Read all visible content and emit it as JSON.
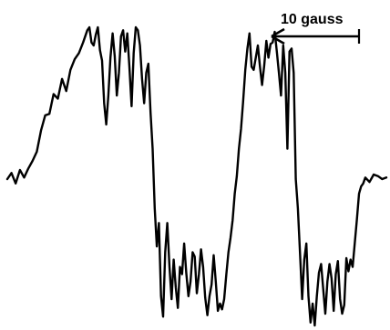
{
  "chart_data": {
    "type": "line",
    "title": "",
    "xlabel": "",
    "ylabel": "",
    "grid": false,
    "legend": "none",
    "line_color": "#000000",
    "scale_bar": {
      "label": "10 gauss",
      "direction": "left-arrow"
    },
    "series": [
      {
        "points": [
          [
            0,
            0
          ],
          [
            2,
            0.4
          ],
          [
            4,
            -0.3
          ],
          [
            6,
            0.6
          ],
          [
            8,
            0.1
          ],
          [
            10,
            0.7
          ],
          [
            12,
            1.2
          ],
          [
            14,
            1.8
          ],
          [
            16,
            3.2
          ],
          [
            18,
            4.2
          ],
          [
            20,
            4.3
          ],
          [
            22,
            5.6
          ],
          [
            24,
            5.3
          ],
          [
            26,
            6.6
          ],
          [
            28,
            5.8
          ],
          [
            30,
            7.2
          ],
          [
            32,
            7.9
          ],
          [
            34,
            8.3
          ],
          [
            36,
            9.0
          ],
          [
            38,
            9.8
          ],
          [
            39,
            10.0
          ],
          [
            40,
            9.0
          ],
          [
            41,
            8.8
          ],
          [
            42,
            9.5
          ],
          [
            43,
            10.0
          ],
          [
            44,
            8.5
          ],
          [
            45,
            7.8
          ],
          [
            46,
            5.0
          ],
          [
            47,
            3.6
          ],
          [
            48,
            5.5
          ],
          [
            49,
            8.0
          ],
          [
            50,
            9.6
          ],
          [
            51,
            8.1
          ],
          [
            52,
            5.5
          ],
          [
            53,
            7.0
          ],
          [
            54,
            9.4
          ],
          [
            55,
            9.8
          ],
          [
            56,
            8.4
          ],
          [
            57,
            9.6
          ],
          [
            58,
            7.4
          ],
          [
            59,
            4.8
          ],
          [
            60,
            8.3
          ],
          [
            61,
            10.0
          ],
          [
            62,
            9.8
          ],
          [
            63,
            8.8
          ],
          [
            64,
            6.6
          ],
          [
            65,
            5.0
          ],
          [
            66,
            7.0
          ],
          [
            67,
            7.6
          ],
          [
            68,
            4.4
          ],
          [
            69,
            2.0
          ],
          [
            70,
            -2.0
          ],
          [
            71,
            -4.6
          ],
          [
            72,
            -3.0
          ],
          [
            73,
            -8.0
          ],
          [
            74,
            -9.4
          ],
          [
            75,
            -5.0
          ],
          [
            76,
            -3.0
          ],
          [
            77,
            -6.0
          ],
          [
            78,
            -8.2
          ],
          [
            79,
            -5.5
          ],
          [
            80,
            -7.4
          ],
          [
            81,
            -8.8
          ],
          [
            82,
            -6.0
          ],
          [
            83,
            -6.5
          ],
          [
            84,
            -4.4
          ],
          [
            85,
            -6.4
          ],
          [
            86,
            -8.0
          ],
          [
            87,
            -7.0
          ],
          [
            88,
            -5.0
          ],
          [
            89,
            -5.3
          ],
          [
            90,
            -7.8
          ],
          [
            91,
            -6.5
          ],
          [
            92,
            -4.8
          ],
          [
            93,
            -6.0
          ],
          [
            94,
            -8.1
          ],
          [
            95,
            -9.3
          ],
          [
            96,
            -8.0
          ],
          [
            97,
            -7.2
          ],
          [
            98,
            -5.2
          ],
          [
            99,
            -7.0
          ],
          [
            100,
            -9.0
          ],
          [
            101,
            -8.5
          ],
          [
            102,
            -8.9
          ],
          [
            103,
            -8.2
          ],
          [
            104,
            -6.5
          ],
          [
            105,
            -5.0
          ],
          [
            106,
            -4.0
          ],
          [
            107,
            -2.8
          ],
          [
            108,
            -1.0
          ],
          [
            109,
            0.2
          ],
          [
            110,
            2.0
          ],
          [
            111,
            3.3
          ],
          [
            112,
            5.1
          ],
          [
            113,
            7.2
          ],
          [
            114,
            8.6
          ],
          [
            115,
            9.6
          ],
          [
            116,
            7.4
          ],
          [
            117,
            7.2
          ],
          [
            118,
            8.0
          ],
          [
            119,
            8.8
          ],
          [
            120,
            7.4
          ],
          [
            121,
            6.2
          ],
          [
            122,
            7.5
          ],
          [
            123,
            9.1
          ],
          [
            124,
            8.0
          ],
          [
            125,
            8.9
          ],
          [
            126,
            9.0
          ],
          [
            127,
            9.7
          ],
          [
            128,
            8.4
          ],
          [
            129,
            7.0
          ],
          [
            130,
            5.5
          ],
          [
            131,
            8.8
          ],
          [
            132,
            7.0
          ],
          [
            133,
            2.0
          ],
          [
            134,
            8.4
          ],
          [
            135,
            8.6
          ],
          [
            136,
            7.0
          ],
          [
            137,
            0
          ],
          [
            138,
            -2.0
          ],
          [
            139,
            -5.0
          ],
          [
            140,
            -8.2
          ],
          [
            141,
            -5.5
          ],
          [
            142,
            -4.4
          ],
          [
            143,
            -8.0
          ],
          [
            144,
            -9.8
          ],
          [
            145,
            -8.5
          ],
          [
            146,
            -10.0
          ],
          [
            147,
            -8.0
          ],
          [
            148,
            -6.4
          ],
          [
            149,
            -5.8
          ],
          [
            150,
            -7.5
          ],
          [
            151,
            -9.2
          ],
          [
            152,
            -7.0
          ],
          [
            153,
            -5.8
          ],
          [
            154,
            -6.8
          ],
          [
            155,
            -9.0
          ],
          [
            156,
            -6.5
          ],
          [
            157,
            -5.6
          ],
          [
            158,
            -8.2
          ],
          [
            159,
            -9.2
          ],
          [
            160,
            -8.6
          ],
          [
            161,
            -5.4
          ],
          [
            162,
            -6.3
          ],
          [
            163,
            -5.5
          ],
          [
            164,
            -6.0
          ],
          [
            165,
            -4.4
          ],
          [
            166,
            -2.8
          ],
          [
            167,
            -1.0
          ],
          [
            168,
            -0.5
          ],
          [
            169,
            -0.3
          ],
          [
            170,
            0.1
          ],
          [
            172,
            -0.2
          ],
          [
            174,
            0.3
          ],
          [
            176,
            0.2
          ],
          [
            178,
            0
          ],
          [
            180,
            0.1
          ]
        ]
      }
    ]
  }
}
